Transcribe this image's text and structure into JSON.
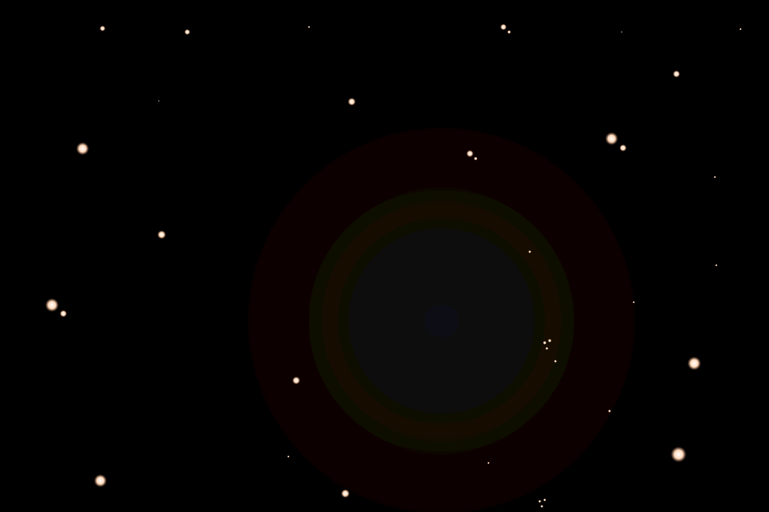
{
  "scene": {
    "background_color": "#000000",
    "glow": {
      "center_color": "#0a1014",
      "mid_color": "#120804",
      "edge_color": "#0e0303"
    },
    "star_color": "#ffd8b8",
    "star_halo_color": "#c88a6a",
    "star_count": 36
  }
}
